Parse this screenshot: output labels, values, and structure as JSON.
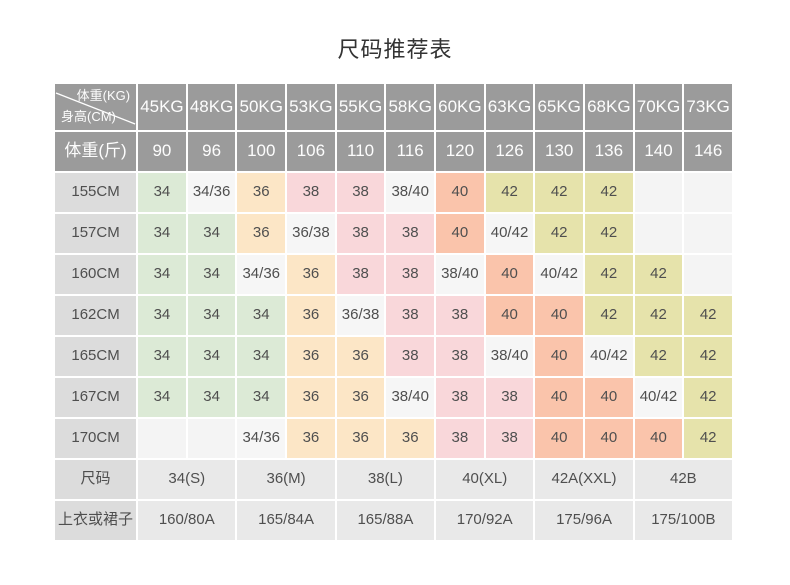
{
  "title": "尺码推荐表",
  "colors": {
    "header_bg": "#9b9b9b",
    "header_text": "#fdfdfd",
    "label_bg": "#dcdcdc",
    "bottom_value_bg": "#e9e9e9",
    "cell_text": "#4f4f4f",
    "title_text": "#333333",
    "size34_green": "#dcead6",
    "size36_peach": "#fce6c6",
    "size38_pink": "#f9d7da",
    "size40_salmon": "#fac4ab",
    "size42_khaki": "#e6e3ab",
    "mixed_cell": "#f6f6f6",
    "empty_cell": "#f4f4f4"
  },
  "header": {
    "corner_top": "体重(KG)",
    "corner_bottom": "身高(CM)",
    "weights_kg": [
      "45KG",
      "48KG",
      "50KG",
      "53KG",
      "55KG",
      "58KG",
      "60KG",
      "63KG",
      "65KG",
      "68KG",
      "70KG",
      "73KG"
    ],
    "jin_label": "体重(斤)",
    "weights_jin": [
      "90",
      "96",
      "100",
      "106",
      "110",
      "116",
      "120",
      "126",
      "130",
      "136",
      "140",
      "146"
    ]
  },
  "body_rows": [
    {
      "label": "155CM",
      "cells": [
        "34",
        "34/36",
        "36",
        "38",
        "38",
        "38/40",
        "40",
        "42",
        "42",
        "42",
        "",
        ""
      ]
    },
    {
      "label": "157CM",
      "cells": [
        "34",
        "34",
        "36",
        "36/38",
        "38",
        "38",
        "40",
        "40/42",
        "42",
        "42",
        "",
        ""
      ]
    },
    {
      "label": "160CM",
      "cells": [
        "34",
        "34",
        "34/36",
        "36",
        "38",
        "38",
        "38/40",
        "40",
        "40/42",
        "42",
        "42",
        ""
      ]
    },
    {
      "label": "162CM",
      "cells": [
        "34",
        "34",
        "34",
        "36",
        "36/38",
        "38",
        "38",
        "40",
        "40",
        "42",
        "42",
        "42"
      ]
    },
    {
      "label": "165CM",
      "cells": [
        "34",
        "34",
        "34",
        "36",
        "36",
        "38",
        "38",
        "38/40",
        "40",
        "40/42",
        "42",
        "42"
      ]
    },
    {
      "label": "167CM",
      "cells": [
        "34",
        "34",
        "34",
        "36",
        "36",
        "38/40",
        "38",
        "38",
        "40",
        "40",
        "40/42",
        "42"
      ]
    },
    {
      "label": "170CM",
      "cells": [
        "",
        "",
        "34/36",
        "36",
        "36",
        "36",
        "38",
        "38",
        "40",
        "40",
        "40",
        "42"
      ]
    }
  ],
  "size_row": {
    "label": "尺码",
    "values": [
      "34(S)",
      "36(M)",
      "38(L)",
      "40(XL)",
      "42A(XXL)",
      "42B"
    ]
  },
  "garment_row": {
    "label": "上衣或裙子",
    "values": [
      "160/80A",
      "165/84A",
      "165/88A",
      "170/92A",
      "175/96A",
      "175/100B"
    ]
  }
}
